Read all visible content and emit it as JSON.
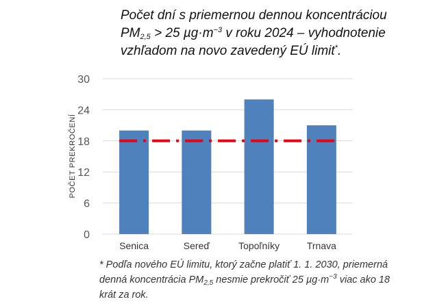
{
  "title": {
    "line1": "Počet dní s priemernou dennou koncentráciou",
    "pm": "PM",
    "pm_sub": "2,5",
    "line2_mid": " > 25 µg·m",
    "unit_sup": "−3",
    "line2_end": " v roku 2024 – vyhodnotenie",
    "line3": "vzhľadom na novo zavedený EÚ limit",
    "line3_sup": "*",
    "line3_end": "."
  },
  "footnote": {
    "part1": "* Podľa nového EÚ limitu, ktorý začne platiť 1. 1. 2030, priemerná denná koncentrácia PM",
    "pm_sub": "2,5",
    "part2": " nesmie prekročiť 25 µg·m",
    "unit_sup": "−3",
    "part3": " viac ako 18 krát za rok."
  },
  "chart_data": {
    "type": "bar",
    "categories": [
      "Senica",
      "Sereď",
      "Topoľníky",
      "Trnava"
    ],
    "values": [
      20,
      20,
      26,
      21
    ],
    "ylabel": "POČET PREKROČENÍ",
    "ylim": [
      0,
      30
    ],
    "yticks": [
      0,
      6,
      12,
      18,
      24,
      30
    ],
    "ytick_labels": [
      "0",
      "6",
      "12",
      "18",
      "24",
      "30"
    ],
    "limit_line": 18,
    "grid": true,
    "colors": {
      "bar": "#4f81bd",
      "limit": "#e30613",
      "grid": "#d9d9d9"
    }
  }
}
